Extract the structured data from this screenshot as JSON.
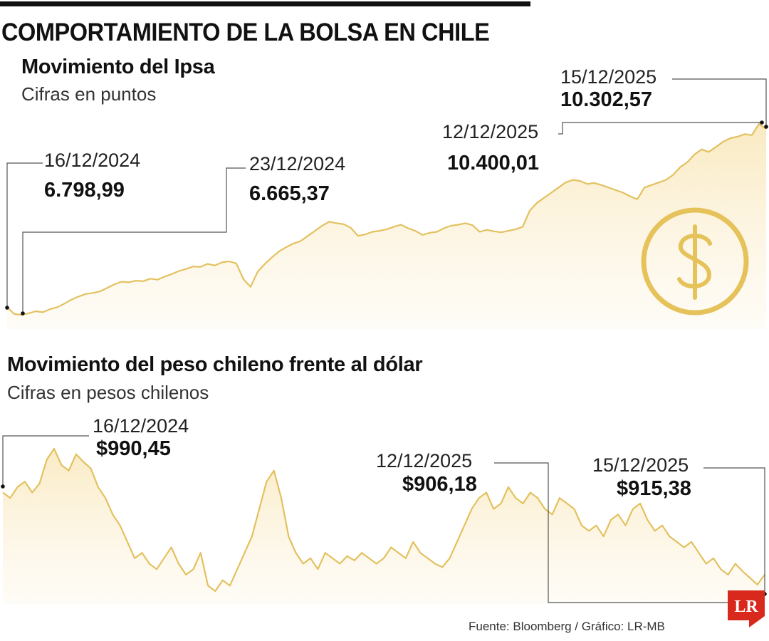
{
  "title": "COMPORTAMIENTO DE LA BOLSA EN CHILE",
  "source": "Fuente: Bloomberg / Gráfico: LR-MB",
  "logo_text": "LR",
  "colors": {
    "line": "#e3c15f",
    "fill": "#fbf0d4",
    "icon": "#e6c25a",
    "logo": "#d9291c"
  },
  "icon": "dollar-icon",
  "chart_data": [
    {
      "type": "area",
      "title": "Movimiento del Ipsa",
      "subtitle": "Cifras en puntos",
      "x_start": "16/12/2024",
      "x_end": "15/12/2025",
      "annotations": [
        {
          "date": "16/12/2024",
          "value": "6.798,99"
        },
        {
          "date": "23/12/2024",
          "value": "6.665,37"
        },
        {
          "date": "12/12/2025",
          "value": "10.400,01"
        },
        {
          "date": "15/12/2025",
          "value": "10.302,57"
        }
      ],
      "values": [
        6799,
        6665,
        6650,
        6680,
        6720,
        6700,
        6760,
        6800,
        6870,
        6950,
        7010,
        7060,
        7080,
        7110,
        7180,
        7250,
        7300,
        7290,
        7320,
        7310,
        7360,
        7340,
        7400,
        7450,
        7510,
        7550,
        7600,
        7590,
        7650,
        7620,
        7680,
        7700,
        7660,
        7350,
        7200,
        7500,
        7650,
        7780,
        7900,
        7980,
        8050,
        8100,
        8200,
        8300,
        8400,
        8480,
        8450,
        8430,
        8360,
        8200,
        8230,
        8280,
        8300,
        8330,
        8380,
        8420,
        8350,
        8300,
        8220,
        8260,
        8280,
        8350,
        8400,
        8420,
        8450,
        8410,
        8280,
        8320,
        8290,
        8270,
        8300,
        8330,
        8380,
        8700,
        8850,
        8950,
        9050,
        9150,
        9250,
        9300,
        9280,
        9220,
        9240,
        9200,
        9150,
        9100,
        9050,
        8980,
        8920,
        9150,
        9200,
        9250,
        9300,
        9400,
        9550,
        9650,
        9800,
        9900,
        9850,
        9950,
        10050,
        10120,
        10150,
        10200,
        10180,
        10400,
        10302
      ]
    },
    {
      "type": "area",
      "title": "Movimiento del peso chileno frente al dólar",
      "subtitle": "Cifras en pesos chilenos",
      "x_start": "16/12/2024",
      "x_end": "15/12/2025",
      "annotations": [
        {
          "date": "16/12/2024",
          "value": "$990,45"
        },
        {
          "date": "12/12/2025",
          "value": "$906,18"
        },
        {
          "date": "15/12/2025",
          "value": "$915,38"
        }
      ],
      "values": [
        990,
        985,
        995,
        1000,
        990,
        998,
        1020,
        1030,
        1015,
        1010,
        1025,
        1018,
        1012,
        995,
        985,
        970,
        960,
        945,
        930,
        935,
        925,
        920,
        930,
        940,
        925,
        915,
        920,
        935,
        905,
        900,
        910,
        905,
        920,
        935,
        950,
        975,
        1000,
        1010,
        985,
        950,
        935,
        925,
        930,
        920,
        935,
        930,
        925,
        932,
        928,
        935,
        930,
        925,
        930,
        940,
        935,
        930,
        945,
        935,
        930,
        925,
        922,
        930,
        945,
        960,
        975,
        985,
        990,
        975,
        980,
        995,
        985,
        980,
        990,
        985,
        975,
        970,
        985,
        980,
        975,
        960,
        955,
        960,
        950,
        965,
        970,
        960,
        975,
        980,
        965,
        955,
        960,
        950,
        945,
        940,
        945,
        935,
        925,
        930,
        920,
        915,
        925,
        918,
        912,
        906,
        915
      ]
    }
  ]
}
